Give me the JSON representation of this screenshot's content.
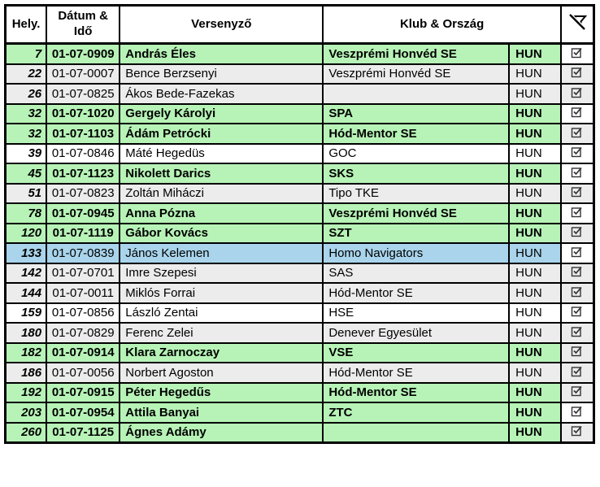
{
  "colors": {
    "row_green": "#b7f3b7",
    "row_gray": "#ececec",
    "row_white": "#ffffff",
    "row_blue": "#a9d4eb",
    "border": "#000000",
    "checkbox_glyph": "#333333"
  },
  "table": {
    "columns": [
      {
        "label": "Hely."
      },
      {
        "label": "Dátum & Idő"
      },
      {
        "label": "Versenyző"
      },
      {
        "label": "Klub & Ország"
      },
      {
        "icon": "filter-off-icon"
      }
    ],
    "rows": [
      {
        "place": "7",
        "datetime": "01-07-0909",
        "name": "András Éles",
        "club": "Veszprémi Honvéd SE",
        "country": "HUN",
        "style": "green",
        "check_bg": "white",
        "checked": true
      },
      {
        "place": "22",
        "datetime": "01-07-0007",
        "name": "Bence Berzsenyi",
        "club": "Veszprémi Honvéd SE",
        "country": "HUN",
        "style": "gray",
        "check_bg": "gray",
        "checked": true
      },
      {
        "place": "26",
        "datetime": "01-07-0825",
        "name": "Ákos Bede-Fazekas",
        "club": "",
        "country": "HUN",
        "style": "gray",
        "check_bg": "gray",
        "checked": true
      },
      {
        "place": "32",
        "datetime": "01-07-1020",
        "name": "Gergely Károlyi",
        "club": "SPA",
        "country": "HUN",
        "style": "green",
        "check_bg": "white",
        "checked": true
      },
      {
        "place": "32",
        "datetime": "01-07-1103",
        "name": "Ádám Petrócki",
        "club": "Hód-Mentor SE",
        "country": "HUN",
        "style": "green",
        "check_bg": "gray",
        "checked": true
      },
      {
        "place": "39",
        "datetime": "01-07-0846",
        "name": "Máté Hegedüs",
        "club": "GOC",
        "country": "HUN",
        "style": "white",
        "check_bg": "white",
        "checked": true
      },
      {
        "place": "45",
        "datetime": "01-07-1123",
        "name": "Nikolett Darics",
        "club": "SKS",
        "country": "HUN",
        "style": "green",
        "check_bg": "white",
        "checked": true
      },
      {
        "place": "51",
        "datetime": "01-07-0823",
        "name": "Zoltán Miháczi",
        "club": "Tipo TKE",
        "country": "HUN",
        "style": "gray",
        "check_bg": "gray",
        "checked": true
      },
      {
        "place": "78",
        "datetime": "01-07-0945",
        "name": "Anna Pózna",
        "club": "Veszprémi Honvéd SE",
        "country": "HUN",
        "style": "green",
        "check_bg": "white",
        "checked": true
      },
      {
        "place": "120",
        "datetime": "01-07-1119",
        "name": "Gábor Kovács",
        "club": "SZT",
        "country": "HUN",
        "style": "green",
        "check_bg": "gray",
        "checked": true
      },
      {
        "place": "133",
        "datetime": "01-07-0839",
        "name": "János Kelemen",
        "club": "Homo Navigators",
        "country": "HUN",
        "style": "blue",
        "check_bg": "white",
        "checked": true
      },
      {
        "place": "142",
        "datetime": "01-07-0701",
        "name": "Imre Szepesi",
        "club": "SAS",
        "country": "HUN",
        "style": "gray",
        "check_bg": "gray",
        "checked": true
      },
      {
        "place": "144",
        "datetime": "01-07-0011",
        "name": "Miklós Forrai",
        "club": "Hód-Mentor SE",
        "country": "HUN",
        "style": "gray",
        "check_bg": "gray",
        "checked": true
      },
      {
        "place": "159",
        "datetime": "01-07-0856",
        "name": "László Zentai",
        "club": "HSE",
        "country": "HUN",
        "style": "white",
        "check_bg": "white",
        "checked": true
      },
      {
        "place": "180",
        "datetime": "01-07-0829",
        "name": "Ferenc Zelei",
        "club": "Denever Egyesület",
        "country": "HUN",
        "style": "gray",
        "check_bg": "gray",
        "checked": true
      },
      {
        "place": "182",
        "datetime": "01-07-0914",
        "name": "Klara Zarnoczay",
        "club": "VSE",
        "country": "HUN",
        "style": "green",
        "check_bg": "gray",
        "checked": true
      },
      {
        "place": "186",
        "datetime": "01-07-0056",
        "name": "Norbert Agoston",
        "club": "Hód-Mentor SE",
        "country": "HUN",
        "style": "gray",
        "check_bg": "gray",
        "checked": true
      },
      {
        "place": "192",
        "datetime": "01-07-0915",
        "name": "Péter Hegedűs",
        "club": "Hód-Mentor SE",
        "country": "HUN",
        "style": "green",
        "check_bg": "gray",
        "checked": true
      },
      {
        "place": "203",
        "datetime": "01-07-0954",
        "name": "Attila Banyai",
        "club": "ZTC",
        "country": "HUN",
        "style": "green",
        "check_bg": "white",
        "checked": true
      },
      {
        "place": "260",
        "datetime": "01-07-1125",
        "name": "Ágnes Adámy",
        "club": "",
        "country": "HUN",
        "style": "green",
        "check_bg": "gray",
        "checked": true
      }
    ]
  }
}
